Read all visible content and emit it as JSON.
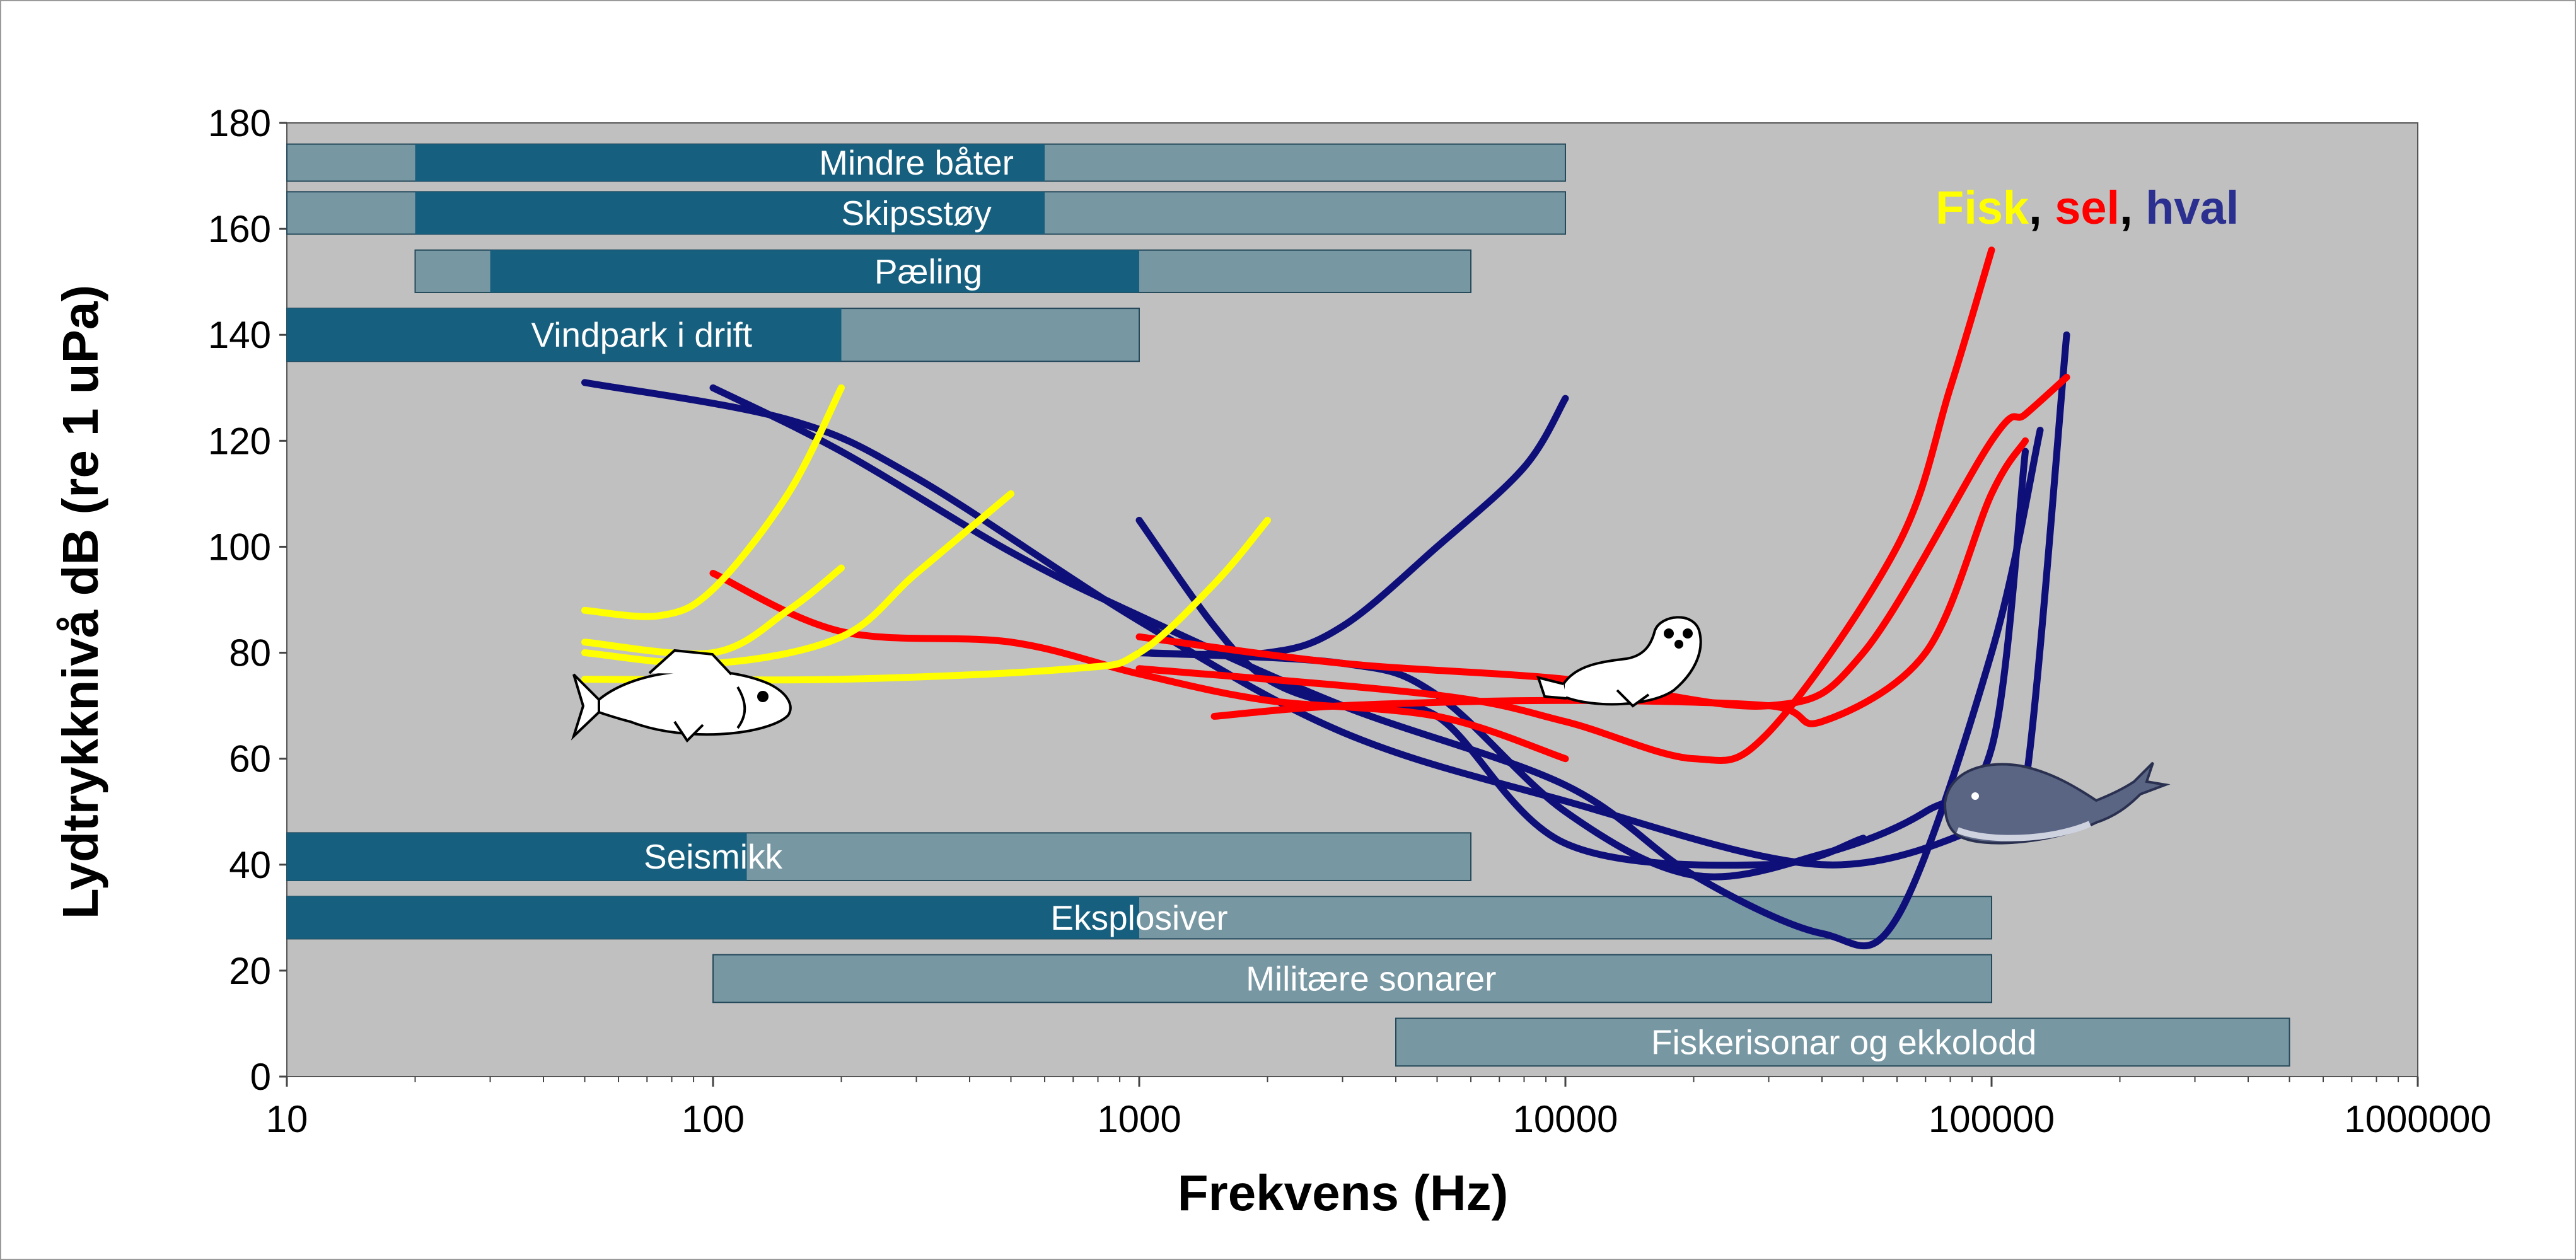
{
  "chart_data": {
    "type": "line",
    "xlabel": "Frekvens (Hz)",
    "ylabel": "Lydtrykknivå dB (re 1 uPa)",
    "x_scale": "log",
    "xlim": [
      10,
      1000000
    ],
    "ylim": [
      0,
      180
    ],
    "x_ticks": [
      "10",
      "100",
      "1000",
      "10000",
      "100000",
      "1000000"
    ],
    "y_ticks": [
      "0",
      "20",
      "40",
      "60",
      "80",
      "100",
      "120",
      "140",
      "160",
      "180"
    ],
    "plot_background": "#c0c0c0",
    "legend": {
      "placement": "top-right",
      "entries": [
        {
          "text": "Fisk",
          "color": "#ffff00"
        },
        {
          "text": ", ",
          "color": "#000000"
        },
        {
          "text": "sel",
          "color": "#ff0000"
        },
        {
          "text": ", ",
          "color": "#000000"
        },
        {
          "text": "hval",
          "color": "#2b2f8f"
        }
      ]
    },
    "bands": [
      {
        "label": "Mindre båter",
        "range": [
          10,
          10000
        ],
        "dark_range": [
          20,
          600
        ],
        "y": [
          169,
          176
        ]
      },
      {
        "label": "Skipsstøy",
        "range": [
          10,
          10000
        ],
        "dark_range": [
          20,
          600
        ],
        "y": [
          159,
          167
        ]
      },
      {
        "label": "Pæling",
        "range": [
          20,
          6000
        ],
        "dark_range": [
          30,
          1000
        ],
        "y": [
          148,
          156
        ]
      },
      {
        "label": "Vindpark i drift",
        "range": [
          10,
          1000
        ],
        "dark_range": [
          10,
          200
        ],
        "y": [
          135,
          145
        ]
      },
      {
        "label": "Seismikk",
        "range": [
          10,
          6000
        ],
        "dark_range": [
          10,
          120
        ],
        "y": [
          37,
          46
        ]
      },
      {
        "label": "Eksplosiver",
        "range": [
          10,
          100000
        ],
        "dark_range": [
          10,
          1000
        ],
        "y": [
          26,
          34
        ]
      },
      {
        "label": "Militære sonarer",
        "range": [
          100,
          100000
        ],
        "dark_range": null,
        "y": [
          14,
          23
        ]
      },
      {
        "label": "Fiskerisonar og ekkolodd",
        "range": [
          4000,
          500000
        ],
        "dark_range": null,
        "y": [
          2,
          11
        ]
      }
    ],
    "series": [
      {
        "group": "Fisk",
        "color": "#ffff00",
        "points": [
          [
            50,
            88
          ],
          [
            75,
            87
          ],
          [
            100,
            92
          ],
          [
            150,
            110
          ],
          [
            200,
            130
          ]
        ]
      },
      {
        "group": "Fisk",
        "color": "#ffff00",
        "points": [
          [
            50,
            82
          ],
          [
            100,
            80
          ],
          [
            150,
            88
          ],
          [
            200,
            96
          ]
        ]
      },
      {
        "group": "Fisk",
        "color": "#ffff00",
        "points": [
          [
            50,
            80
          ],
          [
            100,
            78
          ],
          [
            200,
            83
          ],
          [
            300,
            95
          ],
          [
            500,
            110
          ]
        ]
      },
      {
        "group": "Fisk",
        "color": "#ffff00",
        "points": [
          [
            50,
            75
          ],
          [
            200,
            75
          ],
          [
            700,
            77
          ],
          [
            1000,
            80
          ],
          [
            1500,
            93
          ],
          [
            2000,
            105
          ]
        ]
      },
      {
        "group": "sel",
        "color": "#ff0000",
        "points": [
          [
            100,
            95
          ],
          [
            200,
            84
          ],
          [
            500,
            82
          ],
          [
            1000,
            76
          ],
          [
            2000,
            71
          ],
          [
            5000,
            68
          ],
          [
            10000,
            60
          ]
        ]
      },
      {
        "group": "sel",
        "color": "#ff0000",
        "points": [
          [
            1000,
            83
          ],
          [
            3000,
            78
          ],
          [
            10000,
            75
          ],
          [
            30000,
            70
          ],
          [
            50000,
            80
          ],
          [
            100000,
            120
          ],
          [
            120000,
            125
          ],
          [
            150000,
            132
          ]
        ]
      },
      {
        "group": "sel",
        "color": "#ff0000",
        "points": [
          [
            1000,
            77
          ],
          [
            5000,
            72
          ],
          [
            10000,
            67
          ],
          [
            20000,
            60
          ],
          [
            30000,
            65
          ],
          [
            60000,
            100
          ],
          [
            80000,
            130
          ],
          [
            100000,
            156
          ]
        ]
      },
      {
        "group": "sel",
        "color": "#ff0000",
        "points": [
          [
            1500,
            68
          ],
          [
            3000,
            70
          ],
          [
            10000,
            71
          ],
          [
            30000,
            70
          ],
          [
            40000,
            67
          ],
          [
            70000,
            80
          ],
          [
            100000,
            110
          ],
          [
            120000,
            120
          ]
        ]
      },
      {
        "group": "hval",
        "color": "#0f0f7a",
        "points": [
          [
            50,
            131
          ],
          [
            150,
            124
          ],
          [
            300,
            113
          ],
          [
            1000,
            86
          ],
          [
            3000,
            65
          ],
          [
            10000,
            52
          ],
          [
            40000,
            40
          ],
          [
            100000,
            48
          ],
          [
            120000,
            55
          ],
          [
            150000,
            140
          ]
        ]
      },
      {
        "group": "hval",
        "color": "#0f0f7a",
        "points": [
          [
            100,
            130
          ],
          [
            200,
            118
          ],
          [
            500,
            99
          ],
          [
            1000,
            87
          ],
          [
            3000,
            70
          ],
          [
            10000,
            55
          ],
          [
            20000,
            38
          ],
          [
            40000,
            27
          ],
          [
            60000,
            30
          ],
          [
            100000,
            80
          ],
          [
            130000,
            122
          ]
        ]
      },
      {
        "group": "hval",
        "color": "#0f0f7a",
        "points": [
          [
            1000,
            105
          ],
          [
            1500,
            85
          ],
          [
            2000,
            75
          ],
          [
            3000,
            70
          ],
          [
            5000,
            68
          ],
          [
            10000,
            44
          ],
          [
            30000,
            40
          ],
          [
            50000,
            45
          ]
        ]
      },
      {
        "group": "hval",
        "color": "#0f0f7a",
        "points": [
          [
            1000,
            80
          ],
          [
            3000,
            78
          ],
          [
            5000,
            72
          ],
          [
            10000,
            50
          ],
          [
            20000,
            38
          ],
          [
            40000,
            42
          ],
          [
            70000,
            50
          ],
          [
            100000,
            62
          ],
          [
            120000,
            118
          ]
        ]
      },
      {
        "group": "hval",
        "color": "#0f0f7a",
        "points": [
          [
            1000,
            80
          ],
          [
            2000,
            80
          ],
          [
            3000,
            85
          ],
          [
            5000,
            100
          ],
          [
            8000,
            115
          ],
          [
            10000,
            128
          ]
        ]
      }
    ]
  }
}
